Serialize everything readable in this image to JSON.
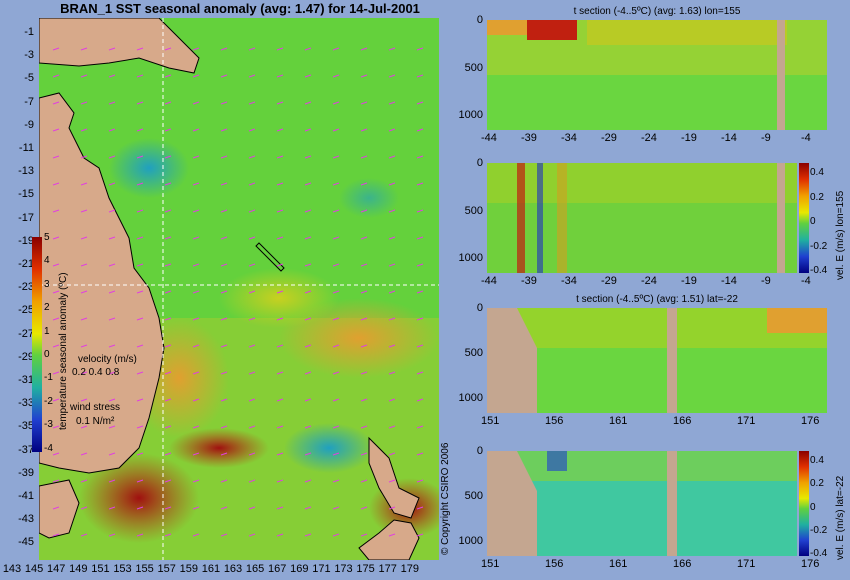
{
  "main_map": {
    "title": "BRAN_1  SST seasonal anomaly (avg: 1.47) for 14-Jul-2001",
    "lat_ticks": [
      "-1",
      "-3",
      "-5",
      "-7",
      "-9",
      "-11",
      "-13",
      "-15",
      "-17",
      "-19",
      "-21",
      "-23",
      "-25",
      "-27",
      "-29",
      "-31",
      "-33",
      "-35",
      "-37",
      "-39",
      "-41",
      "-43",
      "-45"
    ],
    "lon_ticks": [
      "143",
      "145",
      "147",
      "149",
      "151",
      "153",
      "155",
      "157",
      "159",
      "161",
      "163",
      "165",
      "167",
      "169",
      "171",
      "173",
      "175",
      "177",
      "179"
    ],
    "colorbar_ticks": [
      "5",
      "4",
      "3",
      "2",
      "1",
      "0",
      "-1",
      "-2",
      "-3",
      "-4"
    ],
    "colorbar_label": "temperature seasonal anomaly (ºC)",
    "velocity_label": "velocity (m/s)",
    "velocity_values": "0.2 0.4 0.8",
    "wind_label": "wind stress",
    "wind_value": "0.1 N/m²",
    "copyright": "© Copyright CSIRO 2006",
    "crosshair": {
      "lon": 155,
      "lat": -22
    }
  },
  "panels": [
    {
      "title": "t section (-4..5ºC) (avg: 1.63) lon=155",
      "x_ticks": [
        "-44",
        "-39",
        "-34",
        "-29",
        "-24",
        "-19",
        "-14",
        "-9",
        "-4"
      ],
      "y_ticks": [
        "0",
        "500",
        "1000"
      ]
    },
    {
      "title": "",
      "x_ticks": [
        "-44",
        "-39",
        "-34",
        "-29",
        "-24",
        "-19",
        "-14",
        "-9",
        "-4"
      ],
      "y_ticks": [
        "0",
        "500",
        "1000"
      ],
      "cbar_ticks": [
        "0.4",
        "0.2",
        "0",
        "-0.2",
        "-0.4"
      ],
      "cbar_label": "vel. E (m/s) lon=155"
    },
    {
      "title": "t section (-4..5ºC) (avg: 1.51) lat=-22",
      "x_ticks": [
        "151",
        "156",
        "161",
        "166",
        "171",
        "176"
      ],
      "y_ticks": [
        "0",
        "500",
        "1000"
      ]
    },
    {
      "title": "",
      "x_ticks": [
        "151",
        "156",
        "161",
        "166",
        "171",
        "176"
      ],
      "y_ticks": [
        "0",
        "500",
        "1000"
      ],
      "cbar_ticks": [
        "0.4",
        "0.2",
        "0",
        "-0.2",
        "-0.4"
      ],
      "cbar_label": "vel. E (m/s) lat=-22"
    }
  ],
  "colors": {
    "land": "#d7a98a",
    "ocean_base": "#64d13c",
    "background": "#8fa7d4"
  }
}
